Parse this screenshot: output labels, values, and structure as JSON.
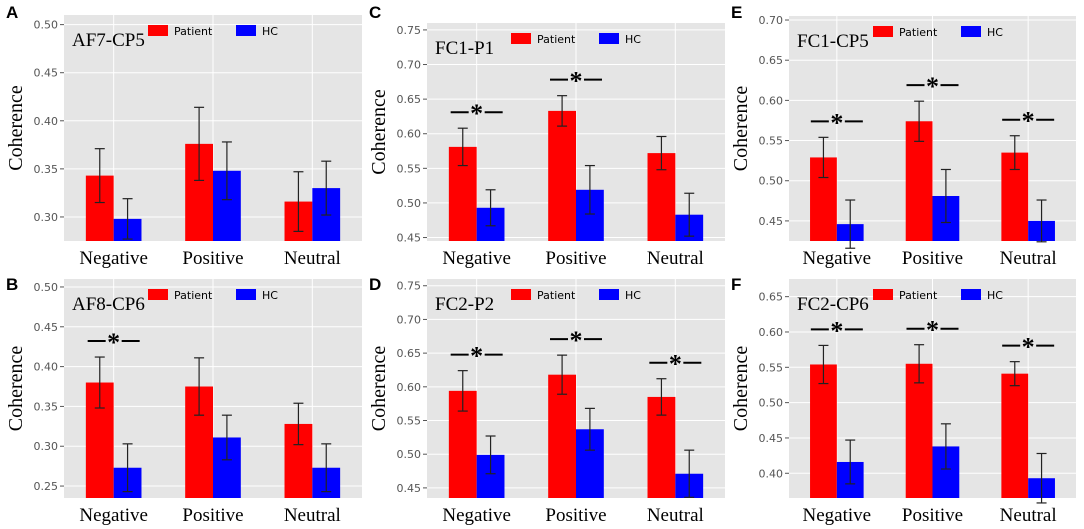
{
  "legend": {
    "patient_label": "Patient",
    "hc_label": "HC"
  },
  "ylabel": "Coherence",
  "significance_marker": "*",
  "colors": {
    "patient": "#ff0000",
    "hc": "#0000ff",
    "panel_bg": "#e5e5e5",
    "grid": "#ffffff"
  },
  "chart_data": [
    {
      "panel": "A",
      "type": "bar",
      "title": "AF7-CP5",
      "categories": [
        "Negative",
        "Positive",
        "Neutral"
      ],
      "ylim": [
        0.275,
        0.51
      ],
      "yticks": [
        "0.30",
        "0.35",
        "0.40",
        "0.45",
        "0.50"
      ],
      "series": [
        {
          "name": "Patient",
          "values": [
            0.343,
            0.376,
            0.316
          ],
          "errors": [
            0.028,
            0.038,
            0.031
          ]
        },
        {
          "name": "HC",
          "values": [
            0.298,
            0.348,
            0.33
          ],
          "errors": [
            0.021,
            0.03,
            0.028
          ]
        }
      ],
      "significant": [
        false,
        false,
        false
      ]
    },
    {
      "panel": "C",
      "type": "bar",
      "title": "FC1-P1",
      "categories": [
        "Negative",
        "Positive",
        "Neutral"
      ],
      "ylim": [
        0.445,
        0.76
      ],
      "yticks": [
        "0.45",
        "0.50",
        "0.55",
        "0.60",
        "0.65",
        "0.70",
        "0.75"
      ],
      "series": [
        {
          "name": "Patient",
          "values": [
            0.581,
            0.633,
            0.572
          ],
          "errors": [
            0.027,
            0.022,
            0.024
          ]
        },
        {
          "name": "HC",
          "values": [
            0.493,
            0.519,
            0.483
          ],
          "errors": [
            0.026,
            0.035,
            0.031
          ]
        }
      ],
      "significant": [
        true,
        true,
        false
      ]
    },
    {
      "panel": "E",
      "type": "bar",
      "title": "FC1-CP5",
      "categories": [
        "Negative",
        "Positive",
        "Neutral"
      ],
      "ylim": [
        0.425,
        0.705
      ],
      "yticks": [
        "0.45",
        "0.50",
        "0.55",
        "0.60",
        "0.65",
        "0.70"
      ],
      "series": [
        {
          "name": "Patient",
          "values": [
            0.529,
            0.574,
            0.535
          ],
          "errors": [
            0.025,
            0.025,
            0.021
          ]
        },
        {
          "name": "HC",
          "values": [
            0.446,
            0.481,
            0.45
          ],
          "errors": [
            0.03,
            0.033,
            0.026
          ]
        }
      ],
      "significant": [
        true,
        true,
        true
      ]
    },
    {
      "panel": "B",
      "type": "bar",
      "title": "AF8-CP6",
      "categories": [
        "Negative",
        "Positive",
        "Neutral"
      ],
      "ylim": [
        0.235,
        0.51
      ],
      "yticks": [
        "0.25",
        "0.30",
        "0.35",
        "0.40",
        "0.45",
        "0.50"
      ],
      "series": [
        {
          "name": "Patient",
          "values": [
            0.38,
            0.375,
            0.328
          ],
          "errors": [
            0.032,
            0.036,
            0.026
          ]
        },
        {
          "name": "HC",
          "values": [
            0.273,
            0.311,
            0.273
          ],
          "errors": [
            0.03,
            0.028,
            0.03
          ]
        }
      ],
      "significant": [
        true,
        false,
        false
      ]
    },
    {
      "panel": "D",
      "type": "bar",
      "title": "FC2-P2",
      "categories": [
        "Negative",
        "Positive",
        "Neutral"
      ],
      "ylim": [
        0.435,
        0.76
      ],
      "yticks": [
        "0.45",
        "0.50",
        "0.55",
        "0.60",
        "0.65",
        "0.70",
        "0.75"
      ],
      "series": [
        {
          "name": "Patient",
          "values": [
            0.594,
            0.618,
            0.585
          ],
          "errors": [
            0.03,
            0.029,
            0.027
          ]
        },
        {
          "name": "HC",
          "values": [
            0.499,
            0.537,
            0.471
          ],
          "errors": [
            0.028,
            0.031,
            0.035
          ]
        }
      ],
      "significant": [
        true,
        true,
        true
      ]
    },
    {
      "panel": "F",
      "type": "bar",
      "title": "FC2-CP6",
      "categories": [
        "Negative",
        "Positive",
        "Neutral"
      ],
      "ylim": [
        0.365,
        0.675
      ],
      "yticks": [
        "0.40",
        "0.45",
        "0.50",
        "0.55",
        "0.60",
        "0.65"
      ],
      "series": [
        {
          "name": "Patient",
          "values": [
            0.554,
            0.555,
            0.541
          ],
          "errors": [
            0.027,
            0.027,
            0.017
          ]
        },
        {
          "name": "HC",
          "values": [
            0.416,
            0.438,
            0.393
          ],
          "errors": [
            0.031,
            0.032,
            0.035
          ]
        }
      ],
      "significant": [
        true,
        true,
        true
      ]
    }
  ]
}
